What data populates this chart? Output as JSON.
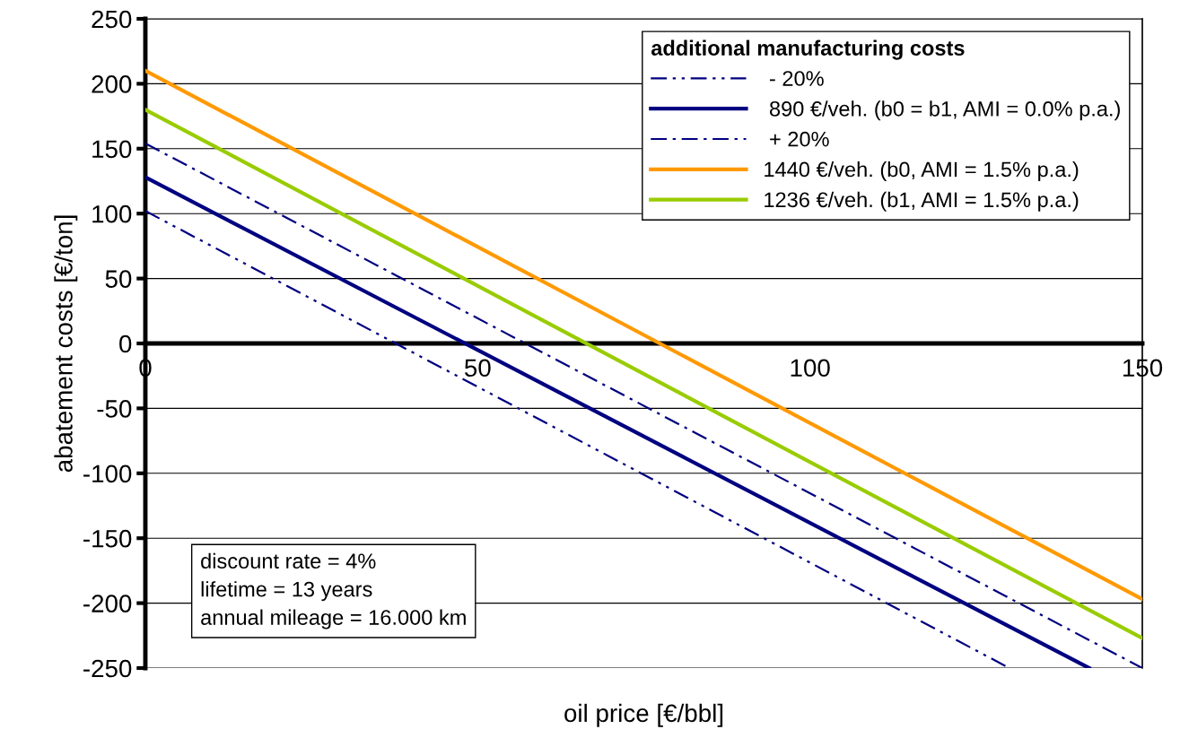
{
  "chart_data": {
    "type": "line",
    "xlabel": "oil price [€/bbl]",
    "ylabel": "abatement costs [€/ton]",
    "legend_title": "additional manufacturing costs",
    "xlim": [
      0,
      150
    ],
    "xticks": [
      0,
      50,
      100,
      150
    ],
    "ylim": [
      -250,
      250
    ],
    "yticks": [
      -250,
      -200,
      -150,
      -100,
      -50,
      0,
      50,
      100,
      150,
      200,
      250
    ],
    "grid": "y",
    "legend": "top right",
    "marker": "none",
    "series": [
      {
        "name": " - 20%",
        "color": "#000080",
        "line_style": "dashdotdot",
        "x": [
          0,
          130
        ],
        "values": [
          102,
          -250
        ]
      },
      {
        "name": " 890 €/veh. (b0 = b1, AMI = 0.0% p.a.)",
        "color": "#000080",
        "line_style": "solid",
        "x": [
          0,
          142
        ],
        "values": [
          128,
          -250
        ]
      },
      {
        "name": " + 20%",
        "color": "#000080",
        "line_style": "dashdot",
        "x": [
          0,
          150
        ],
        "values": [
          154,
          -250
        ]
      },
      {
        "name": "1440 €/veh. (b0, AMI = 1.5% p.a.)",
        "color": "#ff9900",
        "line_style": "solid",
        "x": [
          0,
          150
        ],
        "values": [
          210,
          -197
        ]
      },
      {
        "name": "1236 €/veh. (b1, AMI = 1.5% p.a.)",
        "color": "#99cc00",
        "line_style": "solid",
        "x": [
          0,
          150
        ],
        "values": [
          180,
          -227
        ]
      }
    ],
    "annotations": [
      "discount rate = 4%\nlifetime = 13 years\nannual mileage = 16.000 km"
    ]
  }
}
